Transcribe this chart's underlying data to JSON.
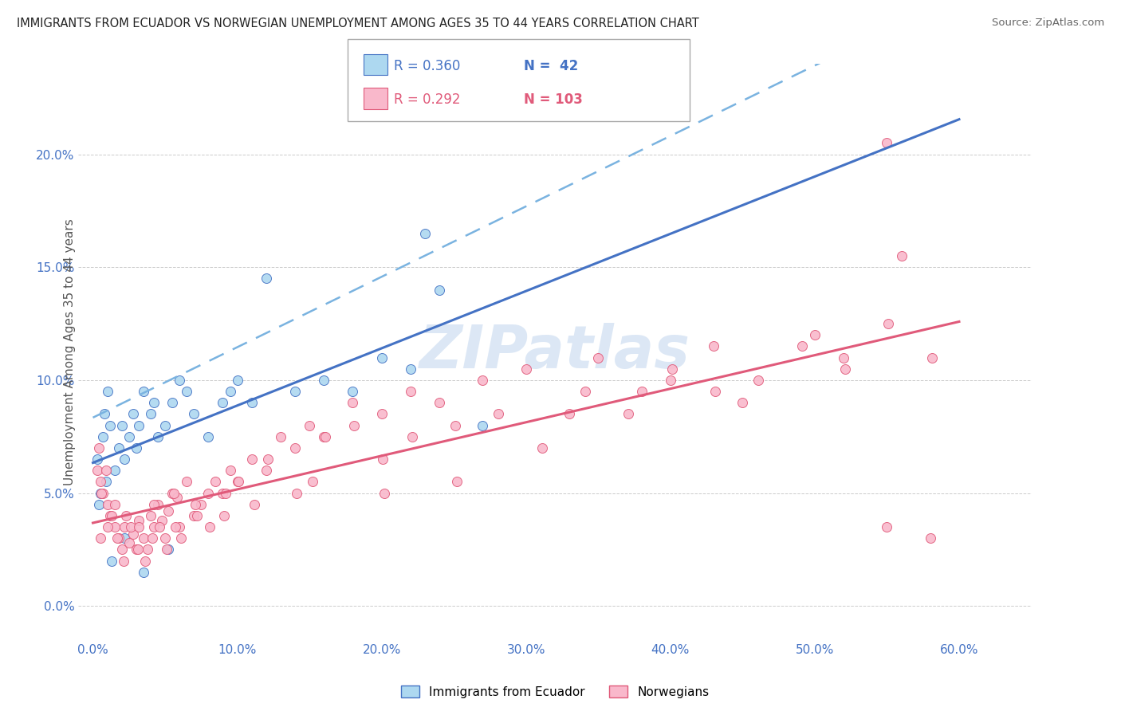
{
  "title": "IMMIGRANTS FROM ECUADOR VS NORWEGIAN UNEMPLOYMENT AMONG AGES 35 TO 44 YEARS CORRELATION CHART",
  "source": "Source: ZipAtlas.com",
  "ylabel": "Unemployment Among Ages 35 to 44 years",
  "xlabel_ticks": [
    "0.0%",
    "10.0%",
    "20.0%",
    "30.0%",
    "40.0%",
    "50.0%",
    "60.0%"
  ],
  "xlabel_vals": [
    0.0,
    10.0,
    20.0,
    30.0,
    40.0,
    50.0,
    60.0
  ],
  "ylabel_ticks": [
    "0.0%",
    "5.0%",
    "10.0%",
    "15.0%",
    "20.0%"
  ],
  "ylabel_vals": [
    0.0,
    5.0,
    10.0,
    15.0,
    20.0
  ],
  "xlim": [
    -1.0,
    65.0
  ],
  "ylim": [
    -1.5,
    24.0
  ],
  "legend_r1": "R = 0.360",
  "legend_n1": "N =  42",
  "legend_r2": "R = 0.292",
  "legend_n2": "N = 103",
  "label1": "Immigrants from Ecuador",
  "label2": "Norwegians",
  "color1": "#add8f0",
  "color2": "#f9b8cb",
  "trendline1_color": "#4472c4",
  "trendline2_color": "#e05a7a",
  "dashed_line_color": "#7ab3e0",
  "watermark": "ZIPatlas",
  "watermark_color": "#c5d8ef",
  "ecuador_x": [
    0.3,
    0.5,
    0.7,
    0.8,
    1.0,
    1.2,
    1.5,
    1.8,
    2.0,
    2.2,
    2.5,
    2.8,
    3.0,
    3.2,
    3.5,
    4.0,
    4.2,
    4.5,
    5.0,
    5.5,
    6.0,
    6.5,
    7.0,
    8.0,
    9.0,
    9.5,
    10.0,
    11.0,
    12.0,
    14.0,
    16.0,
    18.0,
    20.0,
    22.0,
    24.0,
    27.0,
    0.4,
    0.9,
    1.3,
    2.2,
    3.5,
    5.2
  ],
  "ecuador_y": [
    6.5,
    5.0,
    7.5,
    8.5,
    9.5,
    8.0,
    6.0,
    7.0,
    8.0,
    6.5,
    7.5,
    8.5,
    7.0,
    8.0,
    9.5,
    8.5,
    9.0,
    7.5,
    8.0,
    9.0,
    10.0,
    9.5,
    8.5,
    7.5,
    9.0,
    9.5,
    10.0,
    9.0,
    14.5,
    9.5,
    10.0,
    9.5,
    11.0,
    10.5,
    14.0,
    8.0,
    4.5,
    5.5,
    2.0,
    3.0,
    1.5,
    2.5
  ],
  "norway_x": [
    0.3,
    0.5,
    0.7,
    1.0,
    1.2,
    1.5,
    1.8,
    2.0,
    2.2,
    2.5,
    2.8,
    3.0,
    3.2,
    3.5,
    3.8,
    4.0,
    4.2,
    4.5,
    4.8,
    5.0,
    5.2,
    5.5,
    5.8,
    6.0,
    6.5,
    7.0,
    7.5,
    8.0,
    8.5,
    9.0,
    9.5,
    10.0,
    11.0,
    12.0,
    13.0,
    14.0,
    15.0,
    16.0,
    18.0,
    20.0,
    22.0,
    24.0,
    27.0,
    30.0,
    33.0,
    35.0,
    38.0,
    40.0,
    43.0,
    45.0,
    50.0,
    52.0,
    55.0,
    58.0,
    0.4,
    0.6,
    0.9,
    1.3,
    1.7,
    2.1,
    2.6,
    3.1,
    3.6,
    4.1,
    4.6,
    5.1,
    5.6,
    6.1,
    7.1,
    8.1,
    9.1,
    10.1,
    12.1,
    14.1,
    16.1,
    18.1,
    20.1,
    22.1,
    25.1,
    28.1,
    31.1,
    34.1,
    37.1,
    40.1,
    43.1,
    46.1,
    49.1,
    52.1,
    55.1,
    58.1,
    0.5,
    1.0,
    1.5,
    2.3,
    3.2,
    4.2,
    5.7,
    7.2,
    9.2,
    11.2,
    15.2,
    20.2,
    25.2
  ],
  "norway_y": [
    6.0,
    5.5,
    5.0,
    4.5,
    4.0,
    3.5,
    3.0,
    2.5,
    3.5,
    2.8,
    3.2,
    2.5,
    3.8,
    3.0,
    2.5,
    4.0,
    3.5,
    4.5,
    3.8,
    3.0,
    4.2,
    5.0,
    4.8,
    3.5,
    5.5,
    4.0,
    4.5,
    5.0,
    5.5,
    5.0,
    6.0,
    5.5,
    6.5,
    6.0,
    7.5,
    7.0,
    8.0,
    7.5,
    9.0,
    8.5,
    9.5,
    9.0,
    10.0,
    10.5,
    8.5,
    11.0,
    9.5,
    10.0,
    11.5,
    9.0,
    12.0,
    11.0,
    3.5,
    3.0,
    7.0,
    5.0,
    6.0,
    4.0,
    3.0,
    2.0,
    3.5,
    2.5,
    2.0,
    3.0,
    3.5,
    2.5,
    5.0,
    3.0,
    4.5,
    3.5,
    4.0,
    5.5,
    6.5,
    5.0,
    7.5,
    8.0,
    6.5,
    7.5,
    8.0,
    8.5,
    7.0,
    9.5,
    8.5,
    10.5,
    9.5,
    10.0,
    11.5,
    10.5,
    12.5,
    11.0,
    3.0,
    3.5,
    4.5,
    4.0,
    3.5,
    4.5,
    3.5,
    4.0,
    5.0,
    4.5,
    5.5,
    5.0,
    5.5
  ]
}
